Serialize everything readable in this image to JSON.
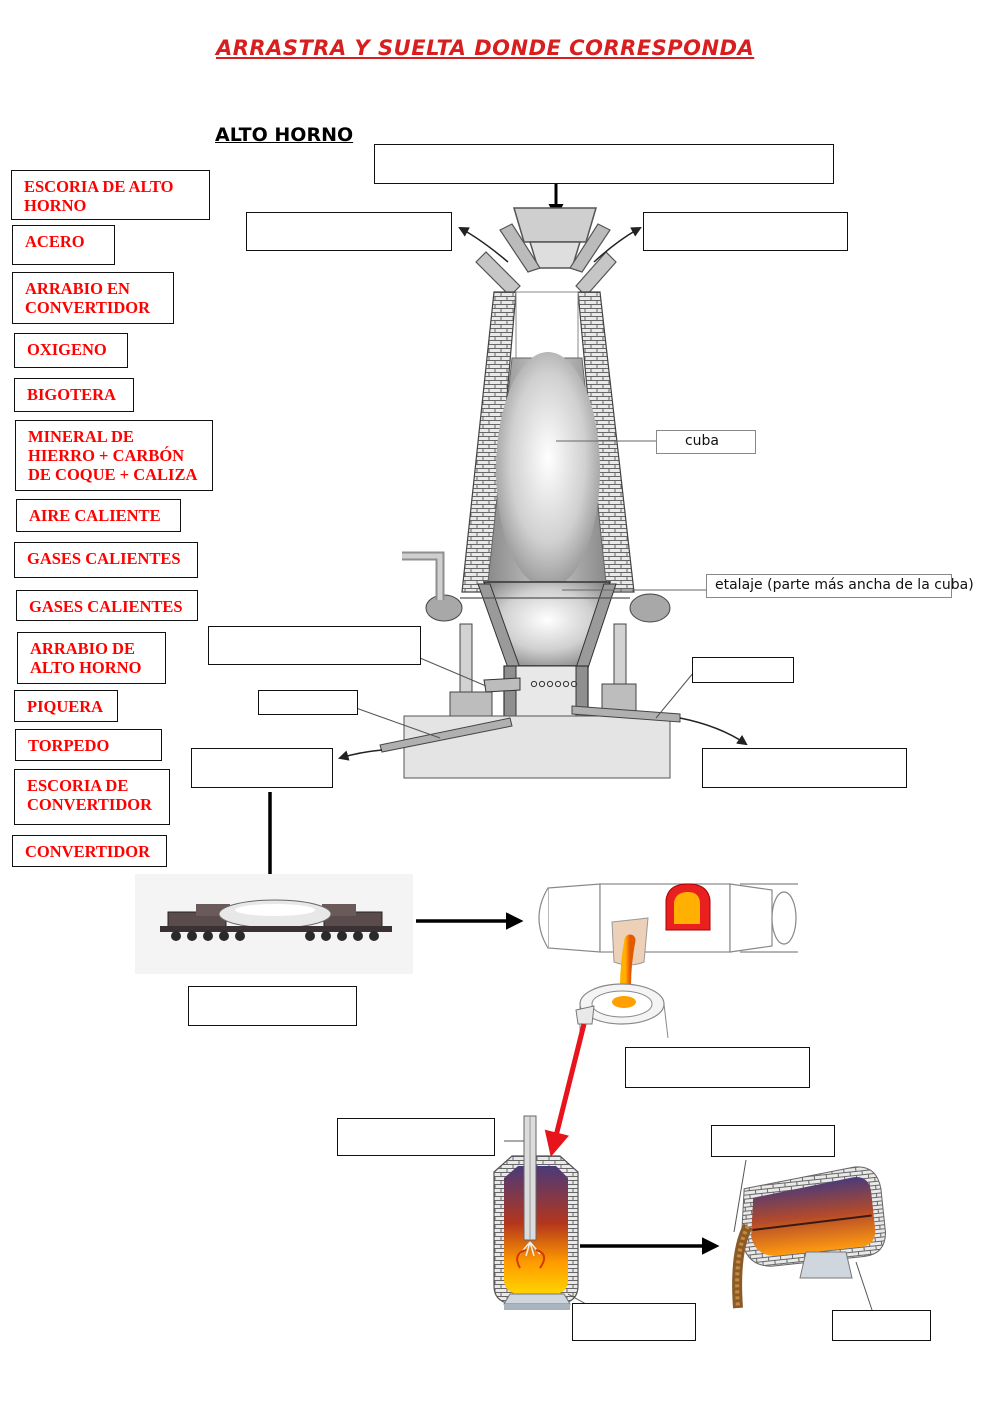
{
  "title": "ARRASTRA Y SUELTA DONDE CORRESPONDA",
  "subtitle": "ALTO HORNO",
  "tiles": [
    "ESCORIA DE ALTO HORNO",
    "ACERO",
    "ARRABIO EN CONVERTIDOR",
    "OXIGENO",
    "BIGOTERA",
    "MINERAL DE HIERRO + CARBÓN DE COQUE + CALIZA",
    "AIRE CALIENTE",
    "GASES CALIENTES",
    "GASES CALIENTES",
    "ARRABIO DE ALTO HORNO",
    "PIQUERA",
    "TORPEDO",
    "ESCORIA DE CONVERTIDOR",
    "CONVERTIDOR"
  ],
  "labels": {
    "cuba": "cuba",
    "etalaje": "etalaje (parte más ancha de la cuba)"
  },
  "colors": {
    "title": "#d81e1e",
    "tile_text": "#ff0000",
    "red_arrow": "#e8141c"
  }
}
